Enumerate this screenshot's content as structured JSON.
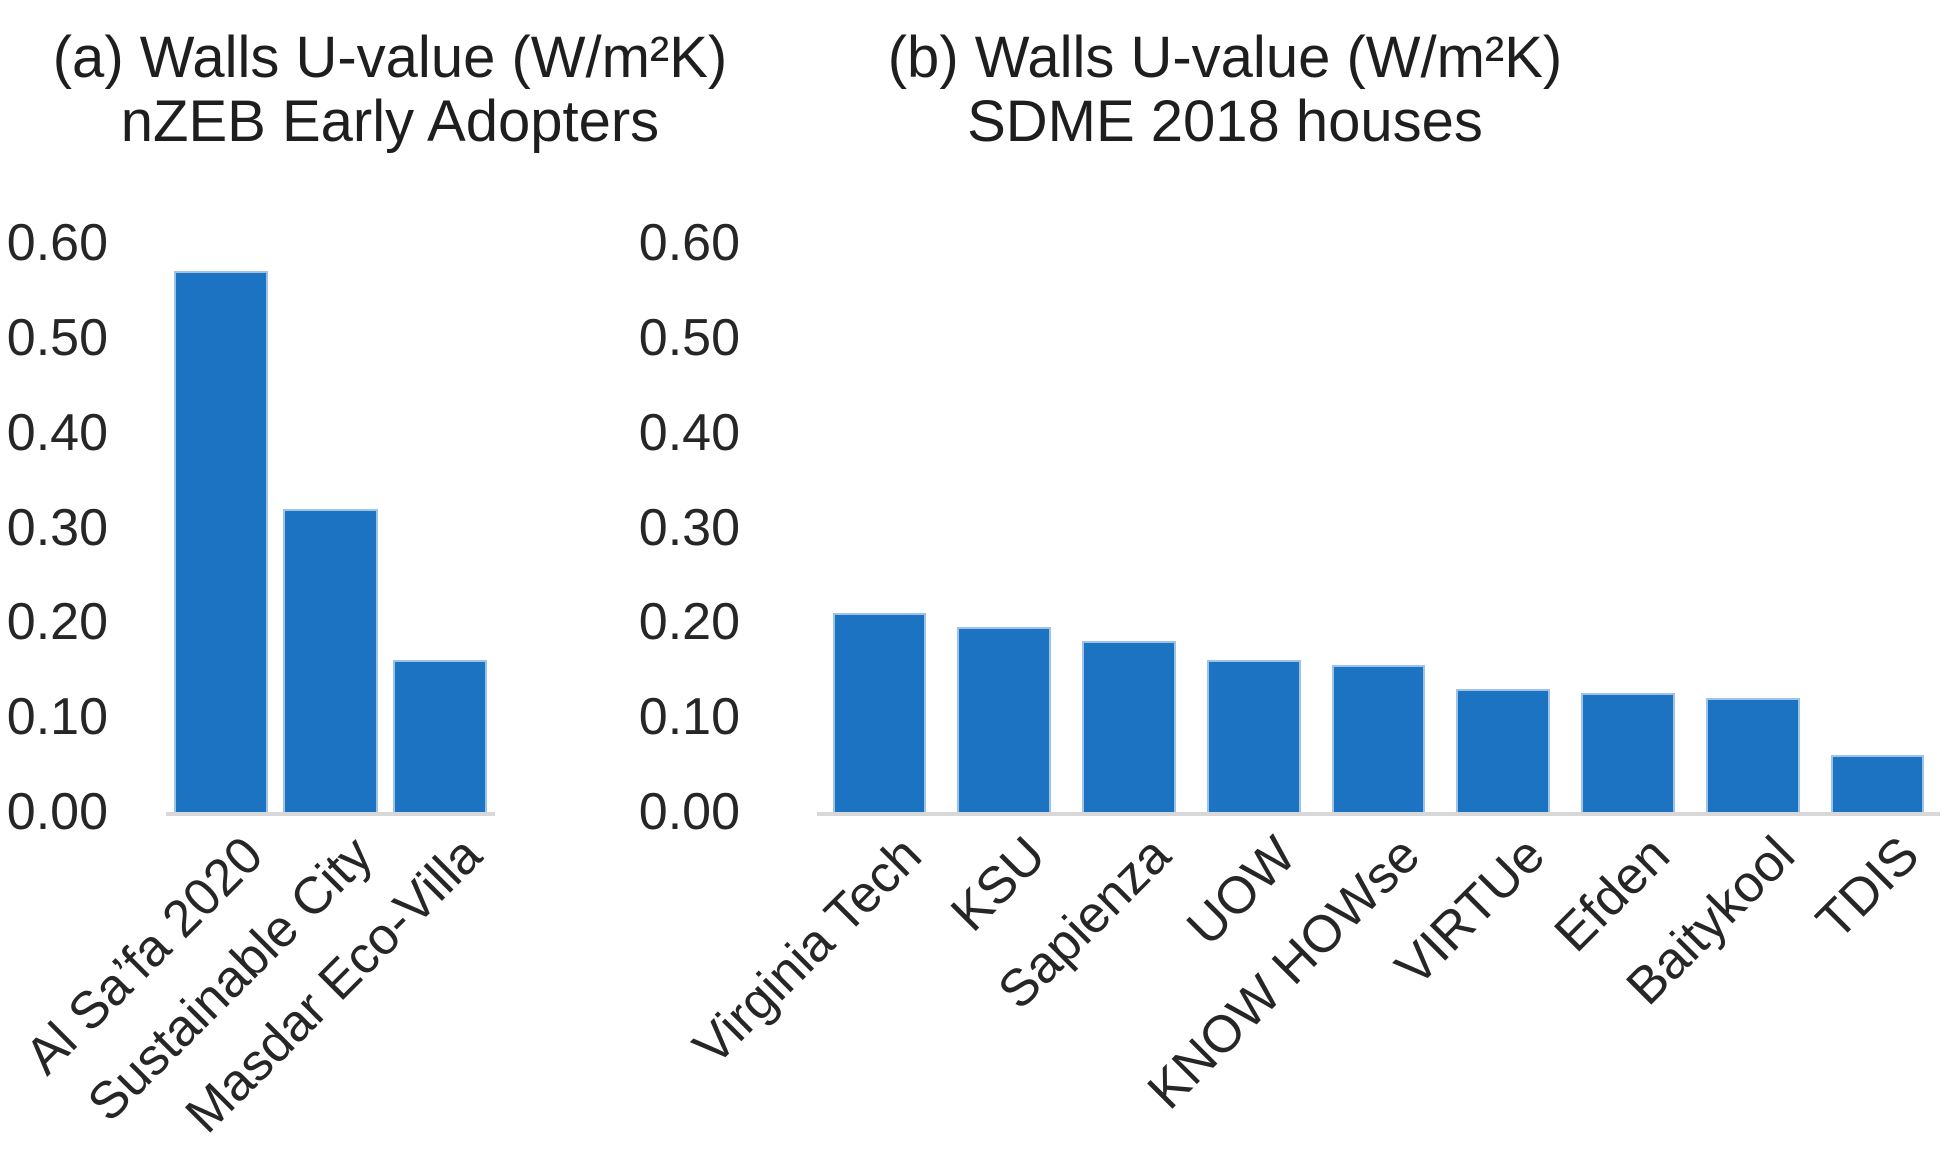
{
  "style": {
    "background": "#FFFFFF",
    "bar_fill": "#1B73C2",
    "bar_border": "#9DC3E6",
    "baseline_color": "#D8D8D8",
    "text_color": "#262626",
    "title_color": "#1E1E1E"
  },
  "chart_data": [
    {
      "id": "a",
      "type": "bar",
      "title_line1": "(a) Walls U-value (W/m²K)",
      "title_line2": "nZEB Early Adopters",
      "categories": [
        "Al Sa’fa 2020",
        "Sustainable City",
        "Masdar Eco-Villa"
      ],
      "values": [
        0.57,
        0.32,
        0.16
      ],
      "ylim": [
        0.0,
        0.6
      ],
      "ytick_step": 0.1,
      "yticks": [
        "0.60",
        "0.50",
        "0.40",
        "0.30",
        "0.20",
        "0.10",
        "0.00"
      ],
      "grid": "off",
      "legend": "none"
    },
    {
      "id": "b",
      "type": "bar",
      "title_line1": "(b) Walls U-value (W/m²K)",
      "title_line2": "SDME 2018 houses",
      "categories": [
        "Virginia Tech",
        "KSU",
        "Sapienza",
        "UOW",
        "KNOW HOWse",
        "VIRTUe",
        "Efden",
        "Baitykool",
        "TDIS"
      ],
      "values": [
        0.21,
        0.195,
        0.18,
        0.16,
        0.155,
        0.13,
        0.125,
        0.12,
        0.06
      ],
      "ylim": [
        0.0,
        0.6
      ],
      "ytick_step": 0.1,
      "yticks": [
        "0.60",
        "0.50",
        "0.40",
        "0.30",
        "0.20",
        "0.10",
        "0.00"
      ],
      "grid": "off",
      "legend": "none"
    }
  ]
}
